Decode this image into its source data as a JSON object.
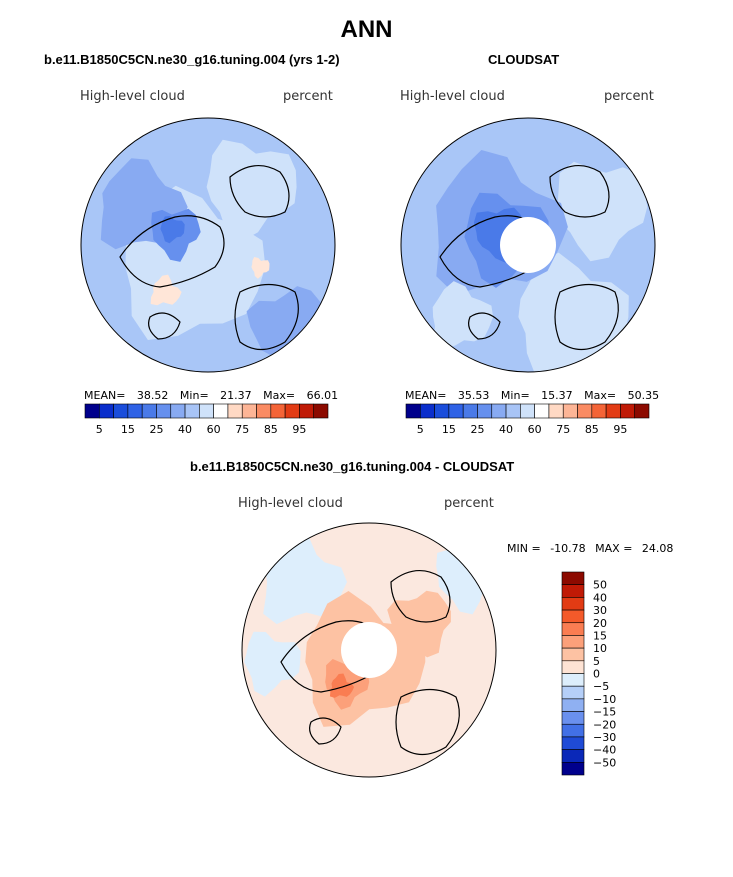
{
  "figure": {
    "title": "ANN"
  },
  "chart_data": [
    {
      "type": "heatmap",
      "projection": "north-polar-stereographic",
      "title": "b.e11.B1850C5CN.ne30_g16.tuning.004 (yrs 1-2)",
      "left_label": "High-level cloud",
      "right_label": "percent",
      "mean_label": "MEAN=",
      "mean": "38.52",
      "min_label": "Min=",
      "min": "21.37",
      "max_label": "Max=",
      "max": "66.01",
      "colorbar": {
        "orientation": "horizontal",
        "levels": [
          5,
          10,
          15,
          20,
          25,
          30,
          35,
          40,
          50,
          60,
          70,
          75,
          80,
          85,
          90,
          95
        ],
        "tick_labels": [
          "5",
          "15",
          "25",
          "40",
          "60",
          "75",
          "85",
          "95"
        ],
        "colors": [
          "#00008c",
          "#0a2ecc",
          "#1a4ddb",
          "#2f62e6",
          "#4a7ae8",
          "#6690ee",
          "#88aaf2",
          "#a8c4f6",
          "#cfe2fa",
          "#ffffff",
          "#ffd9c4",
          "#fdb596",
          "#fa8b63",
          "#f46437",
          "#e23b14",
          "#c01a06",
          "#8c0a00"
        ]
      },
      "has_missing_pole_hole": false
    },
    {
      "type": "heatmap",
      "projection": "north-polar-stereographic",
      "title": "CLOUDSAT",
      "left_label": "High-level cloud",
      "right_label": "percent",
      "mean_label": "MEAN=",
      "mean": "35.53",
      "min_label": "Min=",
      "min": "15.37",
      "max_label": "Max=",
      "max": "50.35",
      "colorbar": {
        "orientation": "horizontal",
        "levels": [
          5,
          10,
          15,
          20,
          25,
          30,
          35,
          40,
          50,
          60,
          70,
          75,
          80,
          85,
          90,
          95
        ],
        "tick_labels": [
          "5",
          "15",
          "25",
          "40",
          "60",
          "75",
          "85",
          "95"
        ],
        "colors": [
          "#00008c",
          "#0a2ecc",
          "#1a4ddb",
          "#2f62e6",
          "#4a7ae8",
          "#6690ee",
          "#88aaf2",
          "#a8c4f6",
          "#cfe2fa",
          "#ffffff",
          "#ffd9c4",
          "#fdb596",
          "#fa8b63",
          "#f46437",
          "#e23b14",
          "#c01a06",
          "#8c0a00"
        ]
      },
      "has_missing_pole_hole": true
    },
    {
      "type": "heatmap",
      "projection": "north-polar-stereographic",
      "title": "b.e11.B1850C5CN.ne30_g16.tuning.004 - CLOUDSAT",
      "left_label": "High-level cloud",
      "right_label": "percent",
      "min_label": "MIN =",
      "min": "-10.78",
      "max_label": "MAX =",
      "max": "24.08",
      "colorbar": {
        "orientation": "vertical",
        "tick_labels": [
          "50",
          "40",
          "30",
          "20",
          "15",
          "10",
          "5",
          "0",
          "−5",
          "−10",
          "−15",
          "−20",
          "−30",
          "−40",
          "−50"
        ],
        "colors": [
          "#8c0a00",
          "#c01a06",
          "#e23b14",
          "#f45a2a",
          "#fa7d52",
          "#fca07a",
          "#fdc2a3",
          "#fee3d4",
          "#ddeefc",
          "#b5cff8",
          "#8fb0f2",
          "#6a90ee",
          "#4270e6",
          "#1f4bd6",
          "#0a28b8",
          "#00008c"
        ]
      },
      "has_missing_pole_hole": true
    }
  ]
}
